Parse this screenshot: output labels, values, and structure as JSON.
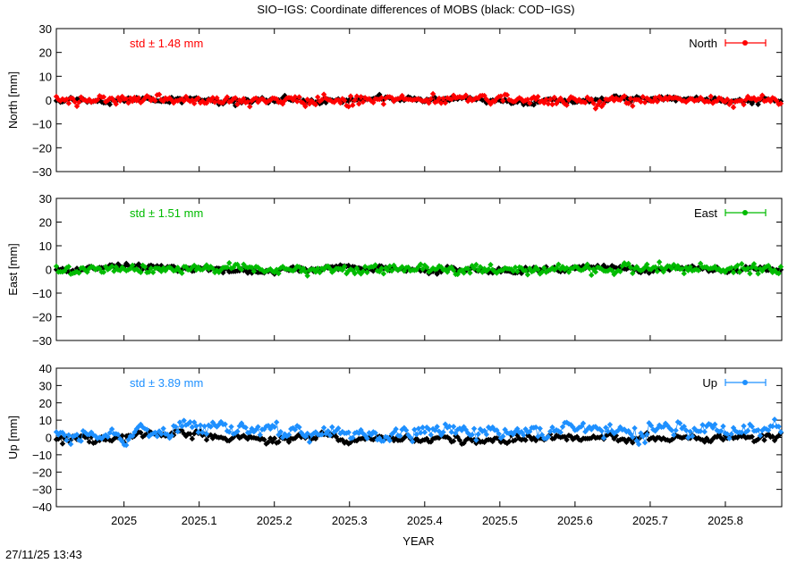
{
  "title": "SIO−IGS: Coordinate differences of MOBS (black: COD−IGS)",
  "timestamp": "27/11/25 13:43",
  "chart_data": [
    {
      "type": "scatter",
      "panel": "north",
      "ylabel": "North [mm]",
      "xlabel": "",
      "ylim": [
        -30,
        30
      ],
      "yticks": [
        30,
        20,
        10,
        0,
        -10,
        -20,
        -30
      ],
      "ytick_labels": [
        "30",
        "20",
        "10",
        "0",
        "−10",
        "−20",
        "−30"
      ],
      "xlim": [
        2024.91,
        2025.875
      ],
      "grid": false,
      "legend": "North",
      "legend_position": "top-right",
      "std_label": "std ± 1.48 mm",
      "std": 1.48,
      "color": "#ff0000",
      "reference_color": "#000000",
      "series": [
        {
          "name": "North",
          "color": "#ff0000",
          "mean": 0.0,
          "std": 1.48,
          "values_note_x_start": 2024.91,
          "values_note_x_end": 2025.875
        }
      ]
    },
    {
      "type": "scatter",
      "panel": "east",
      "ylabel": "East [mm]",
      "xlabel": "",
      "ylim": [
        -30,
        30
      ],
      "yticks": [
        30,
        20,
        10,
        0,
        -10,
        -20,
        -30
      ],
      "ytick_labels": [
        "30",
        "20",
        "10",
        "0",
        "−10",
        "−20",
        "−30"
      ],
      "xlim": [
        2024.91,
        2025.875
      ],
      "grid": false,
      "legend": "East",
      "legend_position": "top-right",
      "std_label": "std ± 1.51 mm",
      "std": 1.51,
      "color": "#00bb00",
      "reference_color": "#000000",
      "series": [
        {
          "name": "East",
          "color": "#00bb00",
          "mean": 0.0,
          "std": 1.51
        }
      ]
    },
    {
      "type": "scatter",
      "panel": "up",
      "ylabel": "Up [mm]",
      "xlabel": "YEAR",
      "ylim": [
        -40,
        40
      ],
      "yticks": [
        40,
        30,
        20,
        10,
        0,
        -10,
        -20,
        -30,
        -40
      ],
      "ytick_labels": [
        "40",
        "30",
        "20",
        "10",
        "0",
        "−10",
        "−20",
        "−30",
        "−40"
      ],
      "xlim": [
        2024.91,
        2025.875
      ],
      "xticks": [
        2025,
        2025.1,
        2025.2,
        2025.3,
        2025.4,
        2025.5,
        2025.6,
        2025.7,
        2025.8
      ],
      "xtick_labels": [
        "2025",
        "2025.1",
        "2025.2",
        "2025.3",
        "2025.4",
        "2025.5",
        "2025.6",
        "2025.7",
        "2025.8"
      ],
      "grid": false,
      "legend": "Up",
      "legend_position": "top-right",
      "std_label": "std ± 3.89 mm",
      "std": 3.89,
      "color": "#1e90ff",
      "reference_color": "#000000",
      "series": [
        {
          "name": "Up",
          "color": "#1e90ff",
          "mean": 4.0,
          "std": 3.89
        }
      ]
    }
  ]
}
